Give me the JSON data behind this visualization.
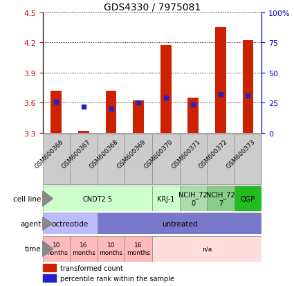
{
  "title": "GDS4330 / 7975081",
  "samples": [
    "GSM600366",
    "GSM600367",
    "GSM600368",
    "GSM600369",
    "GSM600370",
    "GSM600371",
    "GSM600372",
    "GSM600373"
  ],
  "bar_bottom": 3.3,
  "bar_top": [
    3.72,
    3.32,
    3.72,
    3.62,
    4.17,
    3.65,
    4.35,
    4.22
  ],
  "blue_marker": [
    3.61,
    3.56,
    3.54,
    3.6,
    3.65,
    3.58,
    3.68,
    3.67
  ],
  "ylim": [
    3.3,
    4.5
  ],
  "yticks_left": [
    3.3,
    3.6,
    3.9,
    4.2,
    4.5
  ],
  "yticks_right_vals": [
    0,
    25,
    50,
    75,
    100
  ],
  "yticks_right_labels": [
    "0",
    "25",
    "50",
    "75",
    "100%"
  ],
  "bar_color": "#cc2200",
  "blue_color": "#2222cc",
  "left_tick_color": "#cc0000",
  "right_tick_color": "#0000cc",
  "sample_box_color": "#cccccc",
  "cell_configs": [
    {
      "label": "CNDT2.5",
      "span": [
        0,
        4
      ],
      "color": "#ccffcc"
    },
    {
      "label": "KRJ-1",
      "span": [
        4,
        5
      ],
      "color": "#ccffcc"
    },
    {
      "label": "NCIH_72\n0",
      "span": [
        5,
        6
      ],
      "color": "#aaddaa"
    },
    {
      "label": "NCIH_72\n7",
      "span": [
        6,
        7
      ],
      "color": "#88cc88"
    },
    {
      "label": "QGP",
      "span": [
        7,
        8
      ],
      "color": "#22bb22"
    }
  ],
  "agent_configs": [
    {
      "label": "octreotide",
      "span": [
        0,
        2
      ],
      "color": "#bbbbff"
    },
    {
      "label": "untreated",
      "span": [
        2,
        8
      ],
      "color": "#7777cc"
    }
  ],
  "time_configs": [
    {
      "label": "10\nmonths",
      "span": [
        0,
        1
      ],
      "color": "#ffbbbb"
    },
    {
      "label": "16\nmonths",
      "span": [
        1,
        2
      ],
      "color": "#ffbbbb"
    },
    {
      "label": "10\nmonths",
      "span": [
        2,
        3
      ],
      "color": "#ffbbbb"
    },
    {
      "label": "16\nmonths",
      "span": [
        3,
        4
      ],
      "color": "#ffbbbb"
    },
    {
      "label": "n/a",
      "span": [
        4,
        8
      ],
      "color": "#ffdddd"
    }
  ],
  "legend_bar_label": "transformed count",
  "legend_blue_label": "percentile rank within the sample"
}
